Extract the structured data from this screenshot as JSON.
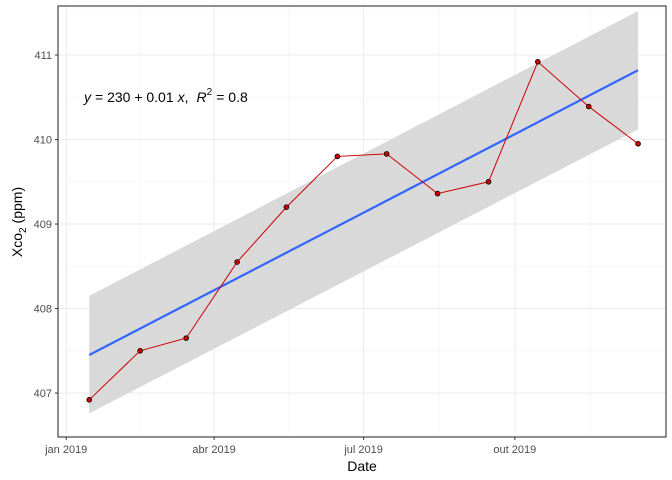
{
  "chart_data": {
    "type": "line",
    "title": "",
    "xlabel": "Date",
    "ylabel": {
      "main": "Xco",
      "subscript": "2",
      "unit": "(ppm)"
    },
    "x_ticks": [
      "jan 2019",
      "abr 2019",
      "jul 2019",
      "out 2019"
    ],
    "x_tick_days": [
      0,
      90,
      181,
      273
    ],
    "y_ticks": [
      "407",
      "408",
      "409",
      "410",
      "411"
    ],
    "xlim": [
      "2018-12-27",
      "2020-01-01"
    ],
    "ylim": [
      406.48,
      411.58
    ],
    "grid": true,
    "series": [
      {
        "type": "line+points",
        "color": "#cc0000",
        "x": [
          "2019-01-15",
          "2019-02-15",
          "2019-03-15",
          "2019-04-15",
          "2019-05-15",
          "2019-06-15",
          "2019-07-15",
          "2019-08-15",
          "2019-09-15",
          "2019-10-15",
          "2019-11-15",
          "2019-12-15"
        ],
        "y": [
          406.92,
          407.5,
          407.65,
          408.55,
          409.2,
          409.8,
          409.83,
          409.36,
          409.5,
          410.92,
          410.39,
          409.95
        ]
      }
    ],
    "fit": {
      "type": "linear",
      "color": "#3366ff",
      "ci_color": "#d9d9d9",
      "y_start": 407.45,
      "y_end": 410.82,
      "ci_start": [
        406.76,
        408.15
      ],
      "ci_end": [
        410.12,
        411.52
      ]
    },
    "annotation": {
      "y_var": "y",
      "equation": "= 230 + 0.01",
      "x_var": "x",
      "separator": ",",
      "r_label": "R",
      "r_sup": "2",
      "r_value": "= 0.8"
    }
  }
}
